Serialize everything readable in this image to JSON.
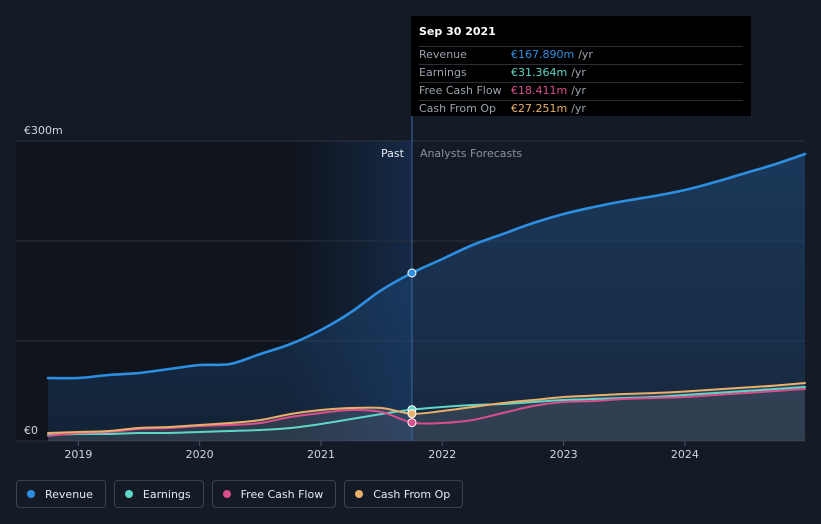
{
  "chart_data": {
    "type": "area",
    "ylabel_top": "€300m",
    "ylabel_zero": "€0",
    "ylim": [
      0,
      300
    ],
    "xlim": [
      2018.75,
      2024.99
    ],
    "xticks": [
      {
        "label": "2019",
        "value": 2019.0
      },
      {
        "label": "2020",
        "value": 2020.0
      },
      {
        "label": "2021",
        "value": 2021.0
      },
      {
        "label": "2022",
        "value": 2022.0
      },
      {
        "label": "2023",
        "value": 2023.0
      },
      {
        "label": "2024",
        "value": 2024.0
      }
    ],
    "divider_x": 2021.75,
    "past_label": "Past",
    "forecast_label": "Analysts Forecasts",
    "series": [
      {
        "name": "Revenue",
        "color": "#2d8fe2",
        "points": [
          [
            2018.75,
            63
          ],
          [
            2019.0,
            63
          ],
          [
            2019.25,
            66
          ],
          [
            2019.5,
            68
          ],
          [
            2019.75,
            72
          ],
          [
            2020.0,
            76
          ],
          [
            2020.25,
            77
          ],
          [
            2020.5,
            87
          ],
          [
            2020.75,
            97
          ],
          [
            2021.0,
            111
          ],
          [
            2021.25,
            129
          ],
          [
            2021.5,
            151
          ],
          [
            2021.75,
            168
          ],
          [
            2022.0,
            182
          ],
          [
            2022.25,
            196
          ],
          [
            2022.5,
            207
          ],
          [
            2022.75,
            218
          ],
          [
            2023.0,
            227
          ],
          [
            2023.25,
            234
          ],
          [
            2023.5,
            240
          ],
          [
            2023.75,
            245
          ],
          [
            2024.0,
            251
          ],
          [
            2024.25,
            259
          ],
          [
            2024.5,
            268
          ],
          [
            2024.75,
            277
          ],
          [
            2024.99,
            287
          ]
        ]
      },
      {
        "name": "Earnings",
        "color": "#5fd6c8",
        "points": [
          [
            2018.75,
            6
          ],
          [
            2019.0,
            7
          ],
          [
            2019.25,
            7
          ],
          [
            2019.5,
            8
          ],
          [
            2019.75,
            8
          ],
          [
            2020.0,
            9
          ],
          [
            2020.25,
            10
          ],
          [
            2020.5,
            11
          ],
          [
            2020.75,
            13
          ],
          [
            2021.0,
            17
          ],
          [
            2021.25,
            22
          ],
          [
            2021.5,
            27
          ],
          [
            2021.75,
            31.4
          ],
          [
            2022.0,
            34
          ],
          [
            2022.25,
            36
          ],
          [
            2022.5,
            37
          ],
          [
            2022.75,
            39
          ],
          [
            2023.0,
            41
          ],
          [
            2023.25,
            42
          ],
          [
            2023.5,
            43
          ],
          [
            2023.75,
            44
          ],
          [
            2024.0,
            46
          ],
          [
            2024.25,
            48
          ],
          [
            2024.5,
            50
          ],
          [
            2024.75,
            52
          ],
          [
            2024.99,
            54
          ]
        ]
      },
      {
        "name": "Free Cash Flow",
        "color": "#d94f8c",
        "points": [
          [
            2018.75,
            5
          ],
          [
            2019.0,
            8
          ],
          [
            2019.25,
            9
          ],
          [
            2019.5,
            12
          ],
          [
            2019.75,
            13
          ],
          [
            2020.0,
            15
          ],
          [
            2020.25,
            16
          ],
          [
            2020.5,
            18
          ],
          [
            2020.75,
            24
          ],
          [
            2021.0,
            28
          ],
          [
            2021.25,
            31
          ],
          [
            2021.5,
            29
          ],
          [
            2021.75,
            18.4
          ],
          [
            2022.0,
            18
          ],
          [
            2022.25,
            21
          ],
          [
            2022.5,
            28
          ],
          [
            2022.75,
            35
          ],
          [
            2023.0,
            39
          ],
          [
            2023.25,
            40
          ],
          [
            2023.5,
            42
          ],
          [
            2023.75,
            43
          ],
          [
            2024.0,
            44
          ],
          [
            2024.25,
            46
          ],
          [
            2024.5,
            48
          ],
          [
            2024.75,
            50
          ],
          [
            2024.99,
            52
          ]
        ]
      },
      {
        "name": "Cash From Op",
        "color": "#e9b06a",
        "points": [
          [
            2018.75,
            8
          ],
          [
            2019.0,
            9
          ],
          [
            2019.25,
            10
          ],
          [
            2019.5,
            13
          ],
          [
            2019.75,
            14
          ],
          [
            2020.0,
            16
          ],
          [
            2020.25,
            18
          ],
          [
            2020.5,
            21
          ],
          [
            2020.75,
            27
          ],
          [
            2021.0,
            31
          ],
          [
            2021.25,
            33
          ],
          [
            2021.5,
            33
          ],
          [
            2021.75,
            27.3
          ],
          [
            2022.0,
            30
          ],
          [
            2022.25,
            34
          ],
          [
            2022.5,
            38
          ],
          [
            2022.75,
            41
          ],
          [
            2023.0,
            44
          ],
          [
            2023.25,
            45.5
          ],
          [
            2023.5,
            47
          ],
          [
            2023.75,
            48
          ],
          [
            2024.0,
            49.5
          ],
          [
            2024.25,
            51.5
          ],
          [
            2024.5,
            53.5
          ],
          [
            2024.75,
            55.5
          ],
          [
            2024.99,
            58
          ]
        ]
      }
    ]
  },
  "tooltip": {
    "date": "Sep 30 2021",
    "rows": [
      {
        "label": "Revenue",
        "value": "€167.890m",
        "unit": "/yr",
        "color": "#2d8fe2"
      },
      {
        "label": "Earnings",
        "value": "€31.364m",
        "unit": "/yr",
        "color": "#5fd6c8"
      },
      {
        "label": "Free Cash Flow",
        "value": "€18.411m",
        "unit": "/yr",
        "color": "#d94f8c"
      },
      {
        "label": "Cash From Op",
        "value": "€27.251m",
        "unit": "/yr",
        "color": "#e9b06a"
      }
    ]
  },
  "legend": [
    {
      "label": "Revenue",
      "color": "#2d8fe2"
    },
    {
      "label": "Earnings",
      "color": "#5fd6c8"
    },
    {
      "label": "Free Cash Flow",
      "color": "#d94f8c"
    },
    {
      "label": "Cash From Op",
      "color": "#e9b06a"
    }
  ]
}
